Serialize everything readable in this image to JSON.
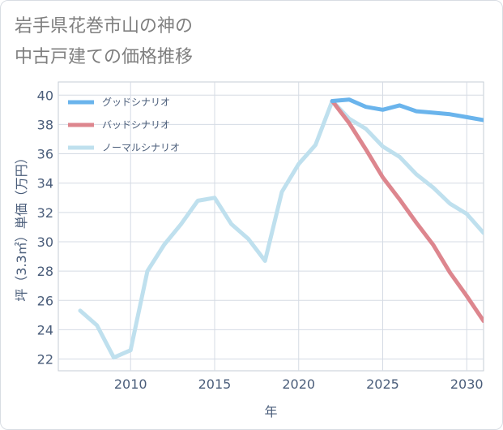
{
  "title": {
    "line1": "岩手県花巻市山の神の",
    "line2": "中古戸建ての価格推移"
  },
  "chart_data": {
    "type": "line",
    "xlabel": "年",
    "ylabel": "坪（3.3㎡）単価（万円）",
    "xlim": [
      2005.7,
      2031.0
    ],
    "ylim": [
      21.2,
      40.9
    ],
    "xticks": [
      2010,
      2015,
      2020,
      2025,
      2030
    ],
    "yticks": [
      22,
      24,
      26,
      28,
      30,
      32,
      34,
      36,
      38,
      40
    ],
    "grid": true,
    "legend_position": "top-left",
    "series": [
      {
        "name": "グッドシナリオ",
        "color": "#6ab4ec",
        "x": [
          2022,
          2023,
          2024,
          2025,
          2026,
          2027,
          2028,
          2029,
          2030,
          2031
        ],
        "y": [
          39.6,
          39.7,
          39.2,
          39.0,
          39.3,
          38.9,
          38.8,
          38.7,
          38.5,
          38.3
        ]
      },
      {
        "name": "バッドシナリオ",
        "color": "#dd868e",
        "x": [
          2022,
          2023,
          2024,
          2025,
          2026,
          2027,
          2028,
          2029,
          2030,
          2031
        ],
        "y": [
          39.6,
          38.1,
          36.3,
          34.4,
          32.9,
          31.3,
          29.8,
          27.9,
          26.3,
          24.6
        ]
      },
      {
        "name": "ノーマルシナリオ",
        "color": "#bfe0ee",
        "x": [
          2007,
          2008,
          2009,
          2010,
          2011,
          2012,
          2013,
          2014,
          2015,
          2016,
          2017,
          2018,
          2019,
          2020,
          2021,
          2022,
          2023,
          2024,
          2025,
          2026,
          2027,
          2028,
          2029,
          2030,
          2031
        ],
        "y": [
          25.3,
          24.3,
          22.1,
          22.6,
          28.0,
          29.8,
          31.2,
          32.8,
          33.0,
          31.2,
          30.2,
          28.7,
          33.4,
          35.3,
          36.6,
          39.6,
          38.4,
          37.7,
          36.5,
          35.8,
          34.6,
          33.7,
          32.6,
          31.9,
          30.6
        ]
      }
    ]
  }
}
